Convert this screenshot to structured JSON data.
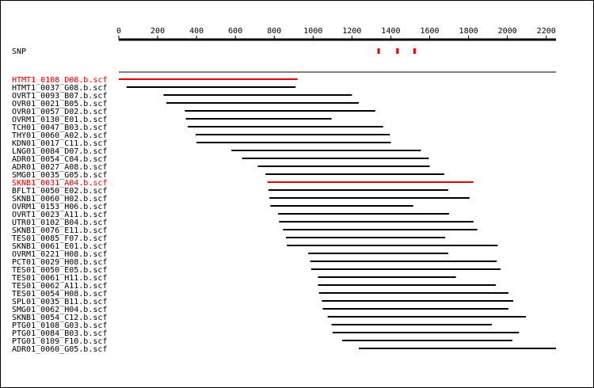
{
  "track_label": "SNP",
  "colors": {
    "axis": "#000000",
    "highlight": "#e60000",
    "snp": "#e60000",
    "normal": "#000000"
  },
  "axis": {
    "min": 0,
    "max": 2250,
    "ticks": [
      0,
      200,
      400,
      600,
      800,
      1000,
      1200,
      1400,
      1600,
      1800,
      2000,
      2200
    ],
    "tick_labels": [
      "0",
      "200",
      "400",
      "600",
      "800",
      "1000",
      "1200",
      "1400",
      "1600",
      "1800",
      "2000",
      "2200"
    ]
  },
  "snps": [
    1335,
    1432,
    1520
  ],
  "reference_line": [
    0,
    2250
  ],
  "reads": [
    {
      "name": "HTMT1_0108_D08.b.scf",
      "start": 0,
      "end": 920,
      "highlight": true
    },
    {
      "name": "HTMT1_0037_G08.b.scf",
      "start": 40,
      "end": 910,
      "highlight": false
    },
    {
      "name": "OVRT1_0093_B07.b.scf",
      "start": 230,
      "end": 1200,
      "highlight": false
    },
    {
      "name": "OVR01_0021_B05.b.scf",
      "start": 245,
      "end": 1235,
      "highlight": false
    },
    {
      "name": "OVR01_0057_D02.b.scf",
      "start": 340,
      "end": 1320,
      "highlight": false
    },
    {
      "name": "OVRM1_0130_E01.b.scf",
      "start": 345,
      "end": 1095,
      "highlight": false
    },
    {
      "name": "TCH01_0047_B03.b.scf",
      "start": 355,
      "end": 1360,
      "highlight": false
    },
    {
      "name": "THY01_0060_A02.b.scf",
      "start": 395,
      "end": 1395,
      "highlight": false
    },
    {
      "name": "KDN01_0017_C11.b.scf",
      "start": 400,
      "end": 1400,
      "highlight": false
    },
    {
      "name": "LNG01_0084_D07.b.scf",
      "start": 580,
      "end": 1555,
      "highlight": false
    },
    {
      "name": "ADR01_0054_C04.b.scf",
      "start": 635,
      "end": 1595,
      "highlight": false
    },
    {
      "name": "ADR01_0027_A08.b.scf",
      "start": 715,
      "end": 1600,
      "highlight": false
    },
    {
      "name": "SMG01_0035_G05.b.scf",
      "start": 755,
      "end": 1675,
      "highlight": false
    },
    {
      "name": "SKNB1_0031_A04.b.scf",
      "start": 765,
      "end": 1825,
      "highlight": true
    },
    {
      "name": "BFLT1_0050_E02.b.scf",
      "start": 770,
      "end": 1695,
      "highlight": false
    },
    {
      "name": "SKNB1_0060_H02.b.scf",
      "start": 775,
      "end": 1805,
      "highlight": false
    },
    {
      "name": "OVRM1_0153_H06.b.scf",
      "start": 780,
      "end": 1515,
      "highlight": false
    },
    {
      "name": "OVRT1_0023_A11.b.scf",
      "start": 820,
      "end": 1700,
      "highlight": false
    },
    {
      "name": "UTR01_0102_B04.b.scf",
      "start": 825,
      "end": 1825,
      "highlight": false
    },
    {
      "name": "SKNB1_0076_E11.b.scf",
      "start": 845,
      "end": 1845,
      "highlight": false
    },
    {
      "name": "TES01_0085_F07.b.scf",
      "start": 860,
      "end": 1680,
      "highlight": false
    },
    {
      "name": "SKNB1_0061_E01.b.scf",
      "start": 865,
      "end": 1950,
      "highlight": false
    },
    {
      "name": "OVRM1_0221_H08.b.scf",
      "start": 975,
      "end": 1695,
      "highlight": false
    },
    {
      "name": "PCT01_0029_H08.b.scf",
      "start": 985,
      "end": 1945,
      "highlight": false
    },
    {
      "name": "TES01_0050_E05.b.scf",
      "start": 990,
      "end": 1965,
      "highlight": false
    },
    {
      "name": "TES01_0061_H11.b.scf",
      "start": 1025,
      "end": 1735,
      "highlight": false
    },
    {
      "name": "TES01_0062_A11.b.scf",
      "start": 1025,
      "end": 1940,
      "highlight": false
    },
    {
      "name": "TES01_0054_H08.b.scf",
      "start": 1030,
      "end": 2005,
      "highlight": false
    },
    {
      "name": "SPL01_0035_B11.b.scf",
      "start": 1045,
      "end": 2030,
      "highlight": false
    },
    {
      "name": "SMG01_0062_H04.b.scf",
      "start": 1050,
      "end": 2005,
      "highlight": false
    },
    {
      "name": "SKNB1_0054_C12.b.scf",
      "start": 1075,
      "end": 2095,
      "highlight": false
    },
    {
      "name": "PTG01_0108_G03.b.scf",
      "start": 1095,
      "end": 1920,
      "highlight": false
    },
    {
      "name": "PTG01_0084_B03.b.scf",
      "start": 1100,
      "end": 2060,
      "highlight": false
    },
    {
      "name": "PTG01_0109_F10.b.scf",
      "start": 1150,
      "end": 2025,
      "highlight": false
    },
    {
      "name": "ADR01_0060_G05.b.scf",
      "start": 1235,
      "end": 2250,
      "highlight": false
    }
  ]
}
